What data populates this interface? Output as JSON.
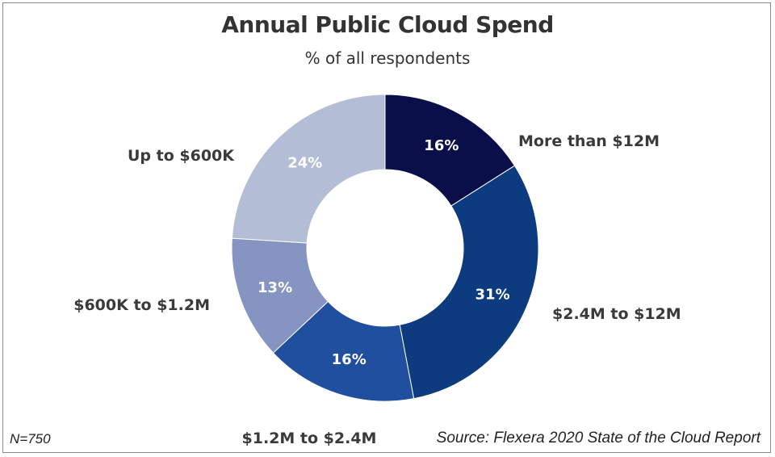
{
  "chart_data": {
    "type": "pie",
    "title": "Annual Public Cloud Spend",
    "subtitle": "% of all respondents",
    "categories": [
      "More than $12M",
      "$2.4M to $12M",
      "$1.2M to $2.4M",
      "$600K to $1.2M",
      "Up to $600K"
    ],
    "values": [
      16,
      31,
      16,
      13,
      24
    ],
    "value_labels": [
      "16%",
      "31%",
      "16%",
      "13%",
      "24%"
    ],
    "colors": [
      "#0a0f4a",
      "#0d3b80",
      "#1f4f9e",
      "#8594c0",
      "#b4bdd6"
    ],
    "legend": "none",
    "donut": true
  },
  "footer": {
    "sample_size": "N=750",
    "source": "Source: Flexera 2020 State of the Cloud Report"
  }
}
